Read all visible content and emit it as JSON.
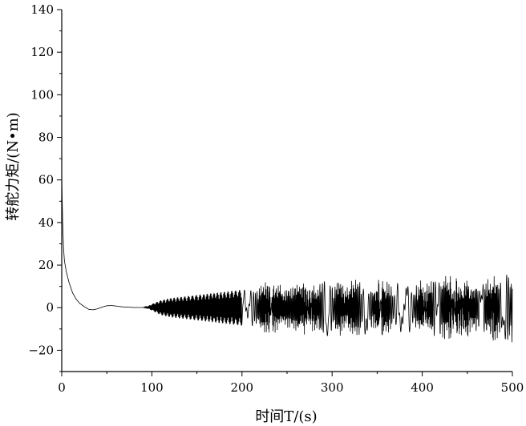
{
  "chart_data": {
    "type": "line",
    "xlabel": "时间T/(s)",
    "ylabel": "转舵力矩/(N•m)",
    "xlim": [
      0,
      500
    ],
    "ylim": [
      -30,
      140
    ],
    "x_ticks": [
      0,
      100,
      200,
      300,
      400,
      500
    ],
    "y_ticks": [
      -20,
      0,
      20,
      40,
      60,
      80,
      100,
      120,
      140
    ],
    "grid": false,
    "series": [
      {
        "color": "#000000",
        "x": [
          0,
          1,
          2,
          3,
          5,
          8,
          12,
          16,
          20,
          25,
          30,
          35,
          40,
          45,
          50,
          55,
          60,
          65,
          70,
          75,
          80,
          85,
          90,
          95,
          100,
          110,
          120,
          140,
          160,
          180,
          200,
          220,
          240,
          260,
          280,
          300,
          320,
          340,
          360,
          380,
          400,
          420,
          440,
          460,
          480,
          500
        ],
        "y": [
          62,
          40,
          28,
          22,
          17,
          12,
          7,
          4,
          2,
          0.5,
          -0.8,
          -1.0,
          -0.5,
          0.3,
          0.9,
          1.0,
          0.8,
          0.5,
          0.3,
          0.2,
          0.1,
          0.1,
          0.1,
          0.1,
          0.2,
          0,
          0,
          0,
          0,
          0,
          0,
          0,
          0,
          0,
          0,
          0,
          0,
          0,
          0,
          0,
          0,
          0,
          0,
          0,
          0,
          0
        ],
        "oscillation_amplitude": [
          0,
          0,
          0,
          0,
          0,
          0,
          0,
          0,
          0,
          0,
          0,
          0,
          0,
          0,
          0,
          0,
          0,
          0,
          0,
          0,
          0,
          0,
          0,
          0.5,
          1.5,
          3.5,
          4.5,
          5.5,
          6.5,
          7.5,
          8.5,
          9,
          9.5,
          10,
          10.5,
          11,
          11,
          11.5,
          12,
          12,
          12.5,
          13,
          13,
          13,
          13,
          13
        ]
      }
    ]
  }
}
